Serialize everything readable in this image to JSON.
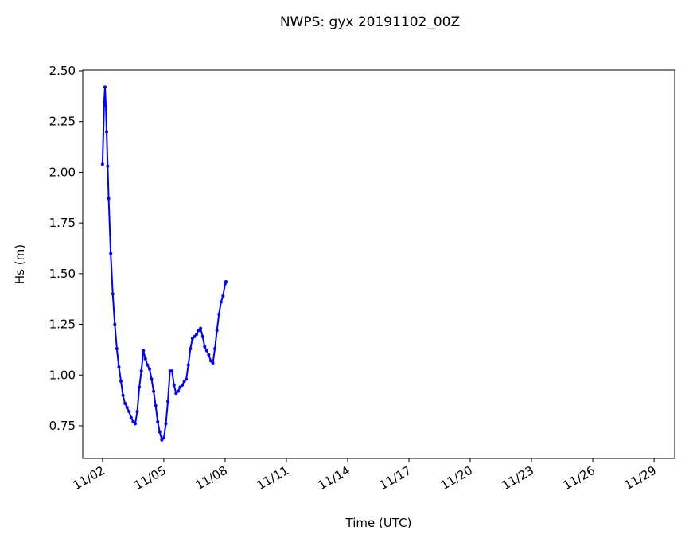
{
  "chart_data": {
    "type": "line",
    "title": "NWPS: gyx 20191102_00Z",
    "xlabel": "Time (UTC)",
    "ylabel": "Hs (m)",
    "x": [
      2.0,
      2.08,
      2.12,
      2.16,
      2.2,
      2.25,
      2.3,
      2.4,
      2.5,
      2.6,
      2.7,
      2.8,
      2.9,
      3.0,
      3.1,
      3.2,
      3.3,
      3.4,
      3.5,
      3.6,
      3.7,
      3.8,
      3.9,
      4.0,
      4.1,
      4.2,
      4.3,
      4.4,
      4.5,
      4.6,
      4.7,
      4.8,
      4.9,
      5.0,
      5.1,
      5.2,
      5.3,
      5.4,
      5.5,
      5.6,
      5.7,
      5.8,
      5.9,
      6.0,
      6.1,
      6.2,
      6.3,
      6.4,
      6.5,
      6.6,
      6.7,
      6.8,
      6.9,
      7.0,
      7.1,
      7.2,
      7.3,
      7.4,
      7.5,
      7.6,
      7.7,
      7.8,
      7.9,
      8.0,
      8.04
    ],
    "series": [
      {
        "name": "Hs",
        "color": "#0000ff",
        "values": [
          2.04,
          2.35,
          2.42,
          2.33,
          2.2,
          2.03,
          1.87,
          1.6,
          1.4,
          1.25,
          1.13,
          1.04,
          0.97,
          0.9,
          0.86,
          0.84,
          0.82,
          0.79,
          0.77,
          0.76,
          0.82,
          0.94,
          1.02,
          1.12,
          1.08,
          1.05,
          1.03,
          0.98,
          0.92,
          0.85,
          0.77,
          0.72,
          0.68,
          0.69,
          0.76,
          0.87,
          1.02,
          1.02,
          0.95,
          0.91,
          0.92,
          0.94,
          0.95,
          0.97,
          0.98,
          1.05,
          1.13,
          1.18,
          1.19,
          1.2,
          1.22,
          1.23,
          1.19,
          1.14,
          1.12,
          1.1,
          1.07,
          1.06,
          1.13,
          1.22,
          1.3,
          1.36,
          1.39,
          1.45,
          1.46
        ]
      }
    ],
    "xlim": [
      1.03,
      30.01
    ],
    "xticks": [
      {
        "value": 2,
        "label": "11/02"
      },
      {
        "value": 5,
        "label": "11/05"
      },
      {
        "value": 8,
        "label": "11/08"
      },
      {
        "value": 11,
        "label": "11/11"
      },
      {
        "value": 14,
        "label": "11/14"
      },
      {
        "value": 17,
        "label": "11/17"
      },
      {
        "value": 20,
        "label": "11/20"
      },
      {
        "value": 23,
        "label": "11/23"
      },
      {
        "value": 26,
        "label": "11/26"
      },
      {
        "value": 29,
        "label": "11/29"
      }
    ],
    "ylim": [
      0.589,
      2.504
    ],
    "yticks": [
      {
        "value": 0.75,
        "label": "0.75"
      },
      {
        "value": 1.0,
        "label": "1.00"
      },
      {
        "value": 1.25,
        "label": "1.25"
      },
      {
        "value": 1.5,
        "label": "1.50"
      },
      {
        "value": 1.75,
        "label": "1.75"
      },
      {
        "value": 2.0,
        "label": "2.00"
      },
      {
        "value": 2.25,
        "label": "2.25"
      },
      {
        "value": 2.5,
        "label": "2.50"
      }
    ],
    "grid": false
  }
}
